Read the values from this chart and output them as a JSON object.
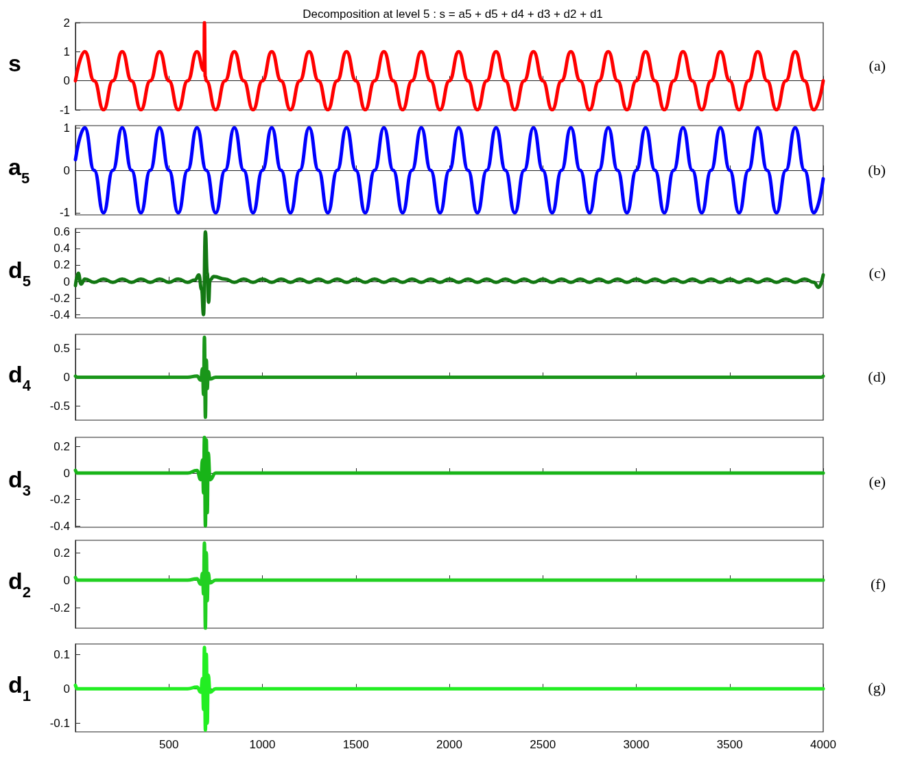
{
  "chart_data": [
    {
      "type": "line",
      "title": "Decomposition at level 5 : s = a5 + d5 + d4 + d3 + d2 + d1",
      "ylabel": "s",
      "annotations": [
        "(a)"
      ],
      "tick_labels": "y",
      "marker": "none",
      "line_style": "solid",
      "xlim": [
        0,
        4000
      ],
      "xticks": [
        500,
        1000,
        1500,
        2000,
        2500,
        3000,
        3500,
        4000
      ],
      "ylim": [
        -1,
        2
      ],
      "yticks": [
        -1,
        0,
        1,
        2
      ],
      "series": [
        {
          "color": "#ff0000",
          "x": [
            0,
            50,
            100,
            150,
            200,
            250,
            300,
            350,
            400,
            450,
            500,
            550,
            600,
            650,
            688,
            690,
            694,
            700,
            750,
            800,
            850,
            900,
            950,
            1000,
            1050,
            1100,
            1150,
            1200,
            1250,
            1300,
            1350,
            1400,
            1450,
            1500,
            1550,
            1600,
            1650,
            1700,
            1750,
            1800,
            1850,
            1900,
            1950,
            2000,
            2050,
            2100,
            2150,
            2200,
            2250,
            2300,
            2350,
            2400,
            2450,
            2500,
            2550,
            2600,
            2650,
            2700,
            2750,
            2800,
            2850,
            2900,
            2950,
            3000,
            3050,
            3100,
            3150,
            3200,
            3250,
            3300,
            3350,
            3400,
            3450,
            3500,
            3550,
            3600,
            3650,
            3700,
            3750,
            3800,
            3850,
            3900,
            3950,
            4000
          ],
          "values": [
            0,
            1,
            0,
            -1,
            0,
            1,
            0,
            -1,
            0,
            1,
            0,
            -1,
            0,
            1,
            0.35,
            2,
            0.15,
            0,
            -1,
            0,
            1,
            0,
            -1,
            0,
            1,
            0,
            -1,
            0,
            1,
            0,
            -1,
            0,
            1,
            0,
            -1,
            0,
            1,
            0,
            -1,
            0,
            1,
            0,
            -1,
            0,
            1,
            0,
            -1,
            0,
            1,
            0,
            -1,
            0,
            1,
            0,
            -1,
            0,
            1,
            0,
            -1,
            0,
            1,
            0,
            -1,
            0,
            1,
            0,
            -1,
            0,
            1,
            0,
            -1,
            0,
            1,
            0,
            -1,
            0,
            1,
            0,
            -1,
            0,
            1,
            0,
            -1,
            0
          ]
        }
      ]
    },
    {
      "type": "line",
      "ylabel": "a$_{5}$",
      "annotations": [
        "(b)"
      ],
      "tick_labels": "y",
      "marker": "none",
      "line_style": "solid",
      "xlim": [
        0,
        4000
      ],
      "xticks": [
        500,
        1000,
        1500,
        2000,
        2500,
        3000,
        3500,
        4000
      ],
      "ylim": [
        -1.05,
        1.05
      ],
      "yticks": [
        -1,
        0,
        1
      ],
      "series": [
        {
          "color": "#0000ff",
          "x": [
            0,
            50,
            100,
            150,
            200,
            250,
            300,
            350,
            400,
            450,
            500,
            550,
            600,
            650,
            700,
            750,
            800,
            850,
            900,
            950,
            1000,
            1050,
            1100,
            1150,
            1200,
            1250,
            1300,
            1350,
            1400,
            1450,
            1500,
            1550,
            1600,
            1650,
            1700,
            1750,
            1800,
            1850,
            1900,
            1950,
            2000,
            2050,
            2100,
            2150,
            2200,
            2250,
            2300,
            2350,
            2400,
            2450,
            2500,
            2550,
            2600,
            2650,
            2700,
            2750,
            2800,
            2850,
            2900,
            2950,
            3000,
            3050,
            3100,
            3150,
            3200,
            3250,
            3300,
            3350,
            3400,
            3450,
            3500,
            3550,
            3600,
            3650,
            3700,
            3750,
            3800,
            3850,
            3900,
            3950,
            4000
          ],
          "values": [
            0.25,
            1,
            0,
            -1,
            0,
            1,
            0,
            -1,
            0,
            1,
            0,
            -1,
            0,
            1,
            0,
            -1,
            0,
            1,
            0,
            -1,
            0,
            1,
            0,
            -1,
            0,
            1,
            0,
            -1,
            0,
            1,
            0,
            -1,
            0,
            1,
            0,
            -1,
            0,
            1,
            0,
            -1,
            0,
            1,
            0,
            -1,
            0,
            1,
            0,
            -1,
            0,
            1,
            0,
            -1,
            0,
            1,
            0,
            -1,
            0,
            1,
            0,
            -1,
            0,
            1,
            0,
            -1,
            0,
            1,
            0,
            -1,
            0,
            1,
            0,
            -1,
            0,
            1,
            0,
            -1,
            0,
            1,
            0,
            -1,
            -0.2
          ]
        }
      ]
    },
    {
      "type": "line",
      "ylabel": "d$_{5}$",
      "annotations": [
        "(c)"
      ],
      "tick_labels": "y",
      "marker": "none",
      "line_style": "solid",
      "xlim": [
        0,
        4000
      ],
      "xticks": [
        500,
        1000,
        1500,
        2000,
        2500,
        3000,
        3500,
        4000
      ],
      "ylim": [
        -0.44,
        0.64
      ],
      "yticks": [
        -0.4,
        -0.2,
        0,
        0.2,
        0.4,
        0.6
      ],
      "series": [
        {
          "color": "#137813",
          "x": [
            0,
            15,
            30,
            50,
            100,
            150,
            200,
            250,
            300,
            350,
            400,
            450,
            500,
            550,
            600,
            640,
            660,
            675,
            685,
            695,
            705,
            712,
            720,
            740,
            800,
            850,
            900,
            950,
            1000,
            1050,
            1100,
            1150,
            1200,
            1250,
            1300,
            1350,
            1400,
            1450,
            1500,
            1550,
            1600,
            1650,
            1700,
            1750,
            1800,
            1850,
            1900,
            1950,
            2000,
            2050,
            2100,
            2150,
            2200,
            2250,
            2300,
            2350,
            2400,
            2450,
            2500,
            2550,
            2600,
            2650,
            2700,
            2750,
            2800,
            2850,
            2900,
            2950,
            3000,
            3050,
            3100,
            3150,
            3200,
            3250,
            3300,
            3350,
            3400,
            3450,
            3500,
            3550,
            3600,
            3650,
            3700,
            3750,
            3800,
            3850,
            3900,
            3950,
            3975,
            4000
          ],
          "values": [
            -0.05,
            0.1,
            -0.03,
            0.03,
            -0.01,
            0.03,
            -0.01,
            0.03,
            -0.01,
            0.03,
            -0.01,
            0.03,
            -0.01,
            0.03,
            -0.01,
            0.02,
            0.08,
            -0.1,
            -0.4,
            0.6,
            0.1,
            -0.25,
            0.02,
            0.06,
            0.03,
            -0.01,
            0.03,
            -0.01,
            0.03,
            -0.01,
            0.03,
            -0.01,
            0.03,
            -0.01,
            0.03,
            -0.01,
            0.03,
            -0.01,
            0.03,
            -0.01,
            0.03,
            -0.01,
            0.03,
            -0.01,
            0.03,
            -0.01,
            0.03,
            -0.01,
            0.03,
            -0.01,
            0.03,
            -0.01,
            0.03,
            -0.01,
            0.03,
            -0.01,
            0.03,
            -0.01,
            0.03,
            -0.01,
            0.03,
            -0.01,
            0.03,
            -0.01,
            0.03,
            -0.01,
            0.03,
            -0.01,
            0.03,
            -0.01,
            0.03,
            -0.01,
            0.03,
            -0.01,
            0.03,
            -0.01,
            0.03,
            -0.01,
            0.03,
            -0.01,
            0.03,
            -0.01,
            0.03,
            -0.01,
            0.03,
            -0.01,
            0.03,
            -0.01,
            -0.07,
            0.08
          ]
        }
      ]
    },
    {
      "type": "line",
      "ylabel": "d$_{4}$",
      "annotations": [
        "(d)"
      ],
      "tick_labels": "y",
      "marker": "none",
      "line_style": "solid",
      "xlim": [
        0,
        4000
      ],
      "xticks": [
        500,
        1000,
        1500,
        2000,
        2500,
        3000,
        3500,
        4000
      ],
      "ylim": [
        -0.75,
        0.75
      ],
      "yticks": [
        -0.5,
        0,
        0.5
      ],
      "series": [
        {
          "color": "#1a961a",
          "x": [
            0,
            10,
            600,
            650,
            670,
            680,
            685,
            690,
            695,
            700,
            705,
            710,
            720,
            750,
            3990,
            4000
          ],
          "values": [
            0.02,
            0,
            0,
            0.02,
            -0.05,
            0.15,
            -0.3,
            0.7,
            -0.7,
            0.3,
            -0.2,
            0.1,
            -0.03,
            0,
            0,
            0.02
          ]
        }
      ]
    },
    {
      "type": "line",
      "ylabel": "d$_{3}$",
      "annotations": [
        "(e)"
      ],
      "tick_labels": "y",
      "marker": "none",
      "line_style": "solid",
      "xlim": [
        0,
        4000
      ],
      "xticks": [
        500,
        1000,
        1500,
        2000,
        2500,
        3000,
        3500,
        4000
      ],
      "ylim": [
        -0.41,
        0.27
      ],
      "yticks": [
        -0.4,
        -0.2,
        0,
        0.2
      ],
      "series": [
        {
          "color": "#18b418",
          "x": [
            0,
            10,
            600,
            650,
            670,
            680,
            685,
            690,
            695,
            700,
            705,
            710,
            720,
            750,
            3990,
            4000
          ],
          "values": [
            0.02,
            0,
            0,
            0.02,
            -0.05,
            0.1,
            -0.15,
            0.27,
            -0.4,
            0.25,
            -0.3,
            0.15,
            -0.05,
            0,
            0,
            0
          ]
        }
      ]
    },
    {
      "type": "line",
      "ylabel": "d$_{2}$",
      "annotations": [
        "(f)"
      ],
      "tick_labels": "y",
      "marker": "none",
      "line_style": "solid",
      "xlim": [
        0,
        4000
      ],
      "xticks": [
        500,
        1000,
        1500,
        2000,
        2500,
        3000,
        3500,
        4000
      ],
      "ylim": [
        -0.35,
        0.29
      ],
      "yticks": [
        -0.2,
        0,
        0.2
      ],
      "series": [
        {
          "color": "#22d022",
          "x": [
            0,
            10,
            600,
            650,
            670,
            680,
            685,
            690,
            695,
            700,
            705,
            710,
            720,
            750,
            3990,
            4000
          ],
          "values": [
            0.02,
            0,
            0,
            0.01,
            -0.03,
            0.05,
            -0.1,
            0.27,
            -0.35,
            0.2,
            -0.15,
            0.05,
            -0.02,
            0,
            0,
            0
          ]
        }
      ]
    },
    {
      "type": "line",
      "ylabel": "d$_{1}$",
      "annotations": [
        "(g)"
      ],
      "marker": "none",
      "line_style": "solid",
      "xlim": [
        0,
        4000
      ],
      "xticks": [
        500,
        1000,
        1500,
        2000,
        2500,
        3000,
        3500,
        4000
      ],
      "ylim": [
        -0.125,
        0.13
      ],
      "yticks": [
        -0.1,
        0,
        0.1
      ],
      "series": [
        {
          "color": "#22ee22",
          "x": [
            0,
            10,
            600,
            650,
            670,
            680,
            685,
            690,
            695,
            700,
            705,
            710,
            720,
            750,
            3990,
            4000
          ],
          "values": [
            0.01,
            0,
            0,
            0.005,
            -0.01,
            0.03,
            -0.06,
            0.12,
            -0.12,
            0.1,
            -0.1,
            0.04,
            -0.01,
            0,
            0,
            0
          ]
        }
      ]
    }
  ]
}
